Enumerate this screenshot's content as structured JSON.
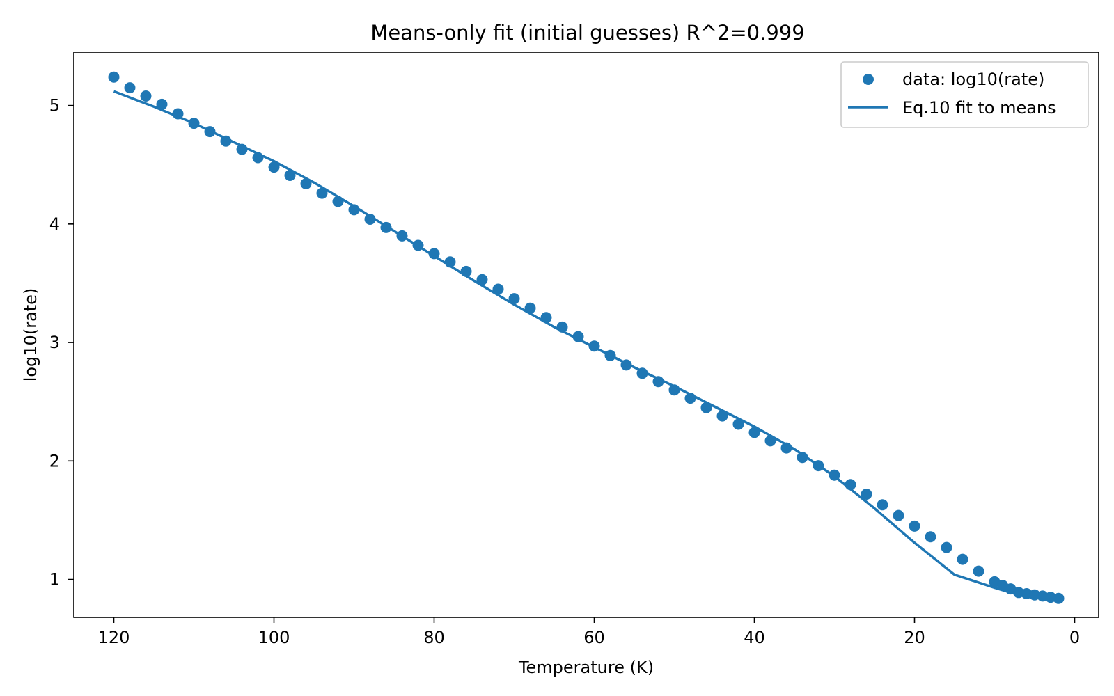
{
  "chart_data": {
    "type": "scatter",
    "title": "Means-only fit (initial guesses)   R^2=0.999",
    "xlabel": "Temperature (K)",
    "ylabel": "log10(rate)",
    "xlim": [
      125,
      -3
    ],
    "ylim": [
      0.68,
      5.45
    ],
    "x_inverted": true,
    "xticks": [
      120,
      100,
      80,
      60,
      40,
      20,
      0
    ],
    "yticks": [
      1,
      2,
      3,
      4,
      5
    ],
    "grid": false,
    "legend_position": "top-right",
    "series": [
      {
        "name": "data: log10(rate)",
        "kind": "scatter",
        "color": "#1f77b4",
        "x": [
          120,
          118,
          116,
          114,
          112,
          110,
          108,
          106,
          104,
          102,
          100,
          98,
          96,
          94,
          92,
          90,
          88,
          86,
          84,
          82,
          80,
          78,
          76,
          74,
          72,
          70,
          68,
          66,
          64,
          62,
          60,
          58,
          56,
          54,
          52,
          50,
          48,
          46,
          44,
          42,
          40,
          38,
          36,
          34,
          32,
          30,
          28,
          26,
          24,
          22,
          20,
          18,
          16,
          14,
          12,
          10,
          9,
          8,
          7,
          6,
          5,
          4,
          3,
          2
        ],
        "y": [
          5.24,
          5.15,
          5.08,
          5.01,
          4.93,
          4.85,
          4.78,
          4.7,
          4.63,
          4.56,
          4.48,
          4.41,
          4.34,
          4.26,
          4.19,
          4.12,
          4.04,
          3.97,
          3.9,
          3.82,
          3.75,
          3.68,
          3.6,
          3.53,
          3.45,
          3.37,
          3.29,
          3.21,
          3.13,
          3.05,
          2.97,
          2.89,
          2.81,
          2.74,
          2.67,
          2.6,
          2.53,
          2.45,
          2.38,
          2.31,
          2.24,
          2.17,
          2.11,
          2.03,
          1.96,
          1.88,
          1.8,
          1.72,
          1.63,
          1.54,
          1.45,
          1.36,
          1.27,
          1.17,
          1.07,
          0.98,
          0.95,
          0.92,
          0.89,
          0.88,
          0.87,
          0.86,
          0.85,
          0.84
        ]
      },
      {
        "name": "Eq.10 fit to means",
        "kind": "line",
        "color": "#1f77b4",
        "x": [
          120,
          115,
          110,
          105,
          100,
          95,
          90,
          85,
          80,
          75,
          70,
          65,
          60,
          55,
          50,
          45,
          40,
          35,
          30,
          25,
          20,
          15,
          10,
          8,
          6,
          4,
          2
        ],
        "y": [
          5.12,
          4.99,
          4.85,
          4.69,
          4.53,
          4.35,
          4.15,
          3.94,
          3.73,
          3.52,
          3.32,
          3.13,
          2.96,
          2.79,
          2.63,
          2.46,
          2.29,
          2.1,
          1.87,
          1.6,
          1.31,
          1.04,
          0.93,
          0.89,
          0.87,
          0.85,
          0.83
        ]
      }
    ]
  }
}
